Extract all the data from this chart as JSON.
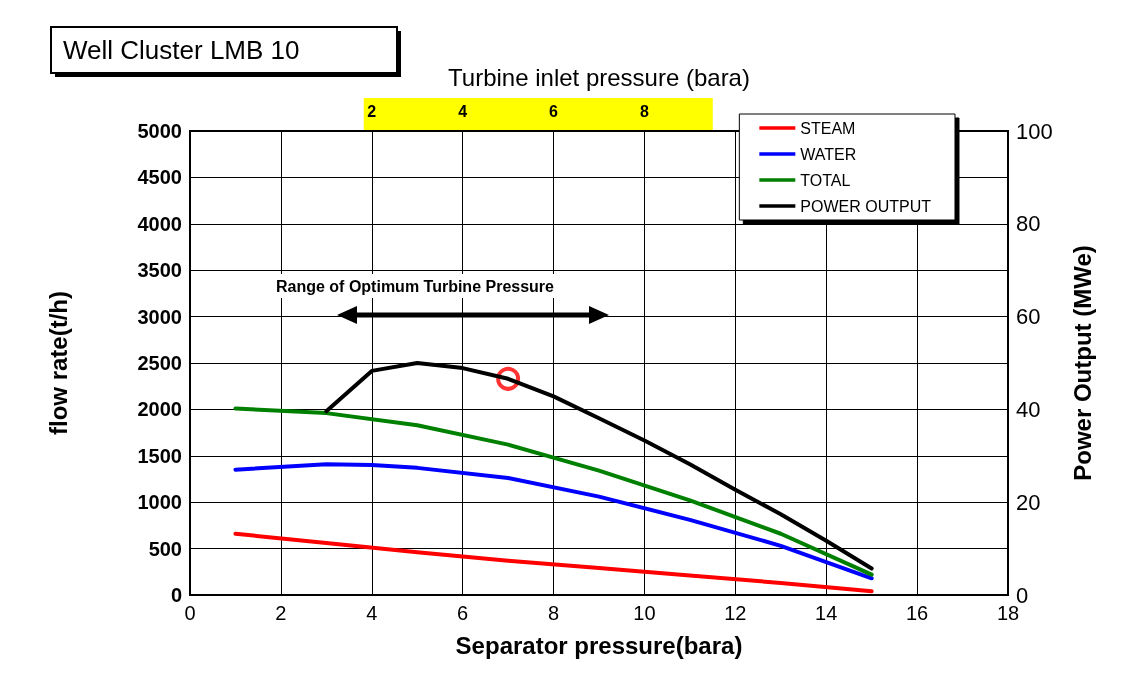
{
  "chart_data": {
    "type": "line",
    "title": "Well Cluster LMB 10",
    "xlabel": "Separator pressure(bara)",
    "ylabel": "flow rate(t/h)",
    "y2label": "Power Output (MWe)",
    "x2label": "Turbine inlet pressure (bara)",
    "xlim": [
      0,
      18
    ],
    "xticks": [
      0,
      2,
      4,
      6,
      8,
      10,
      12,
      14,
      16,
      18
    ],
    "x2lim": [
      -2,
      16
    ],
    "x2ticks": [
      2,
      4,
      6,
      8
    ],
    "ylim": [
      0,
      5000
    ],
    "yticks": [
      0,
      500,
      1000,
      1500,
      2000,
      2500,
      3000,
      3500,
      4000,
      4500,
      5000
    ],
    "y2lim": [
      0,
      100
    ],
    "y2ticks": [
      0,
      20,
      40,
      60,
      80,
      100
    ],
    "grid": true,
    "legend": "top right",
    "marker": "none",
    "line_style": "solid",
    "annotations": [
      "Range of Optimum Turbine Pressure"
    ],
    "series": [
      {
        "name": "STEAM",
        "color": "#ff0000",
        "x": [
          1,
          3,
          5,
          7,
          9,
          11,
          13,
          15
        ],
        "values": [
          660,
          560,
          460,
          370,
          290,
          210,
          130,
          40
        ]
      },
      {
        "name": "WATER",
        "color": "#0000ff",
        "x": [
          1,
          3,
          4,
          5,
          7,
          9,
          11,
          13,
          15
        ],
        "values": [
          1350,
          1410,
          1400,
          1370,
          1260,
          1060,
          810,
          530,
          180
        ]
      },
      {
        "name": "TOTAL",
        "color": "#008000",
        "x": [
          1,
          3,
          5,
          7,
          9,
          11,
          13,
          15
        ],
        "values": [
          2010,
          1960,
          1830,
          1620,
          1340,
          1020,
          660,
          220
        ]
      },
      {
        "name": "POWER OUTPUT",
        "color": "#000000",
        "axis": "y2",
        "x": [
          3,
          4,
          5,
          6,
          7,
          8,
          9,
          10,
          11,
          12,
          13,
          14,
          15
        ],
        "values": [
          39.6,
          48.3,
          50,
          48.9,
          46.6,
          42.8,
          38.1,
          33.3,
          28.2,
          22.7,
          17.4,
          11.7,
          5.7
        ]
      },
      {
        "type": "scatter",
        "color": "#ff0000",
        "axis": "y2",
        "marker": "circle",
        "x": [
          7
        ],
        "values": [
          46.6
        ]
      }
    ]
  }
}
